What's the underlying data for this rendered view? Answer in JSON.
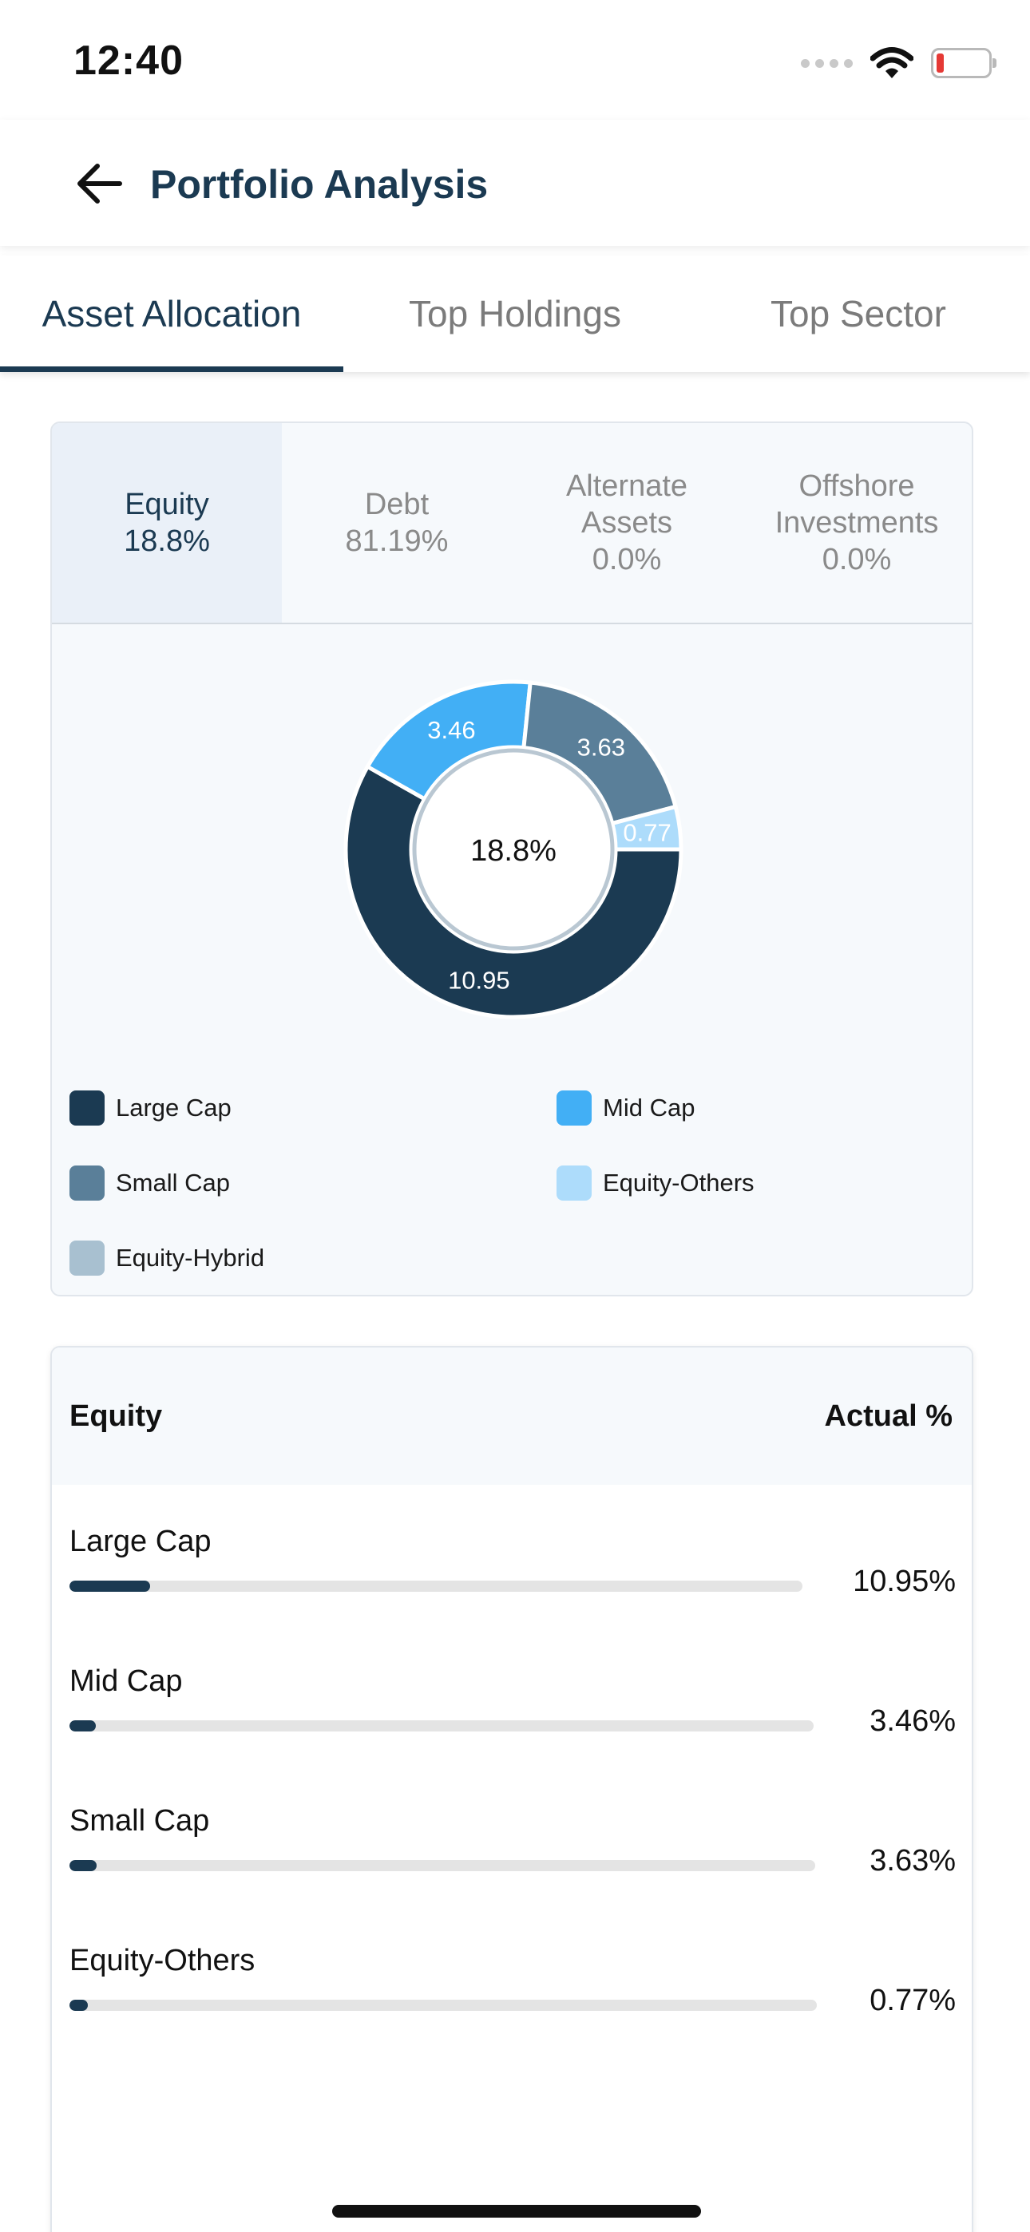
{
  "status": {
    "time": "12:40"
  },
  "header": {
    "title": "Portfolio Analysis"
  },
  "tabs": [
    {
      "label": "Asset Allocation",
      "active": true
    },
    {
      "label": "Top Holdings",
      "active": false
    },
    {
      "label": "Top Sector",
      "active": false
    }
  ],
  "categories": [
    {
      "line1": "Equity",
      "line2": "",
      "value": "18.8%",
      "active": true
    },
    {
      "line1": "Debt",
      "line2": "",
      "value": "81.19%",
      "active": false
    },
    {
      "line1": "Alternate",
      "line2": "Assets",
      "value": "0.0%",
      "active": false
    },
    {
      "line1": "Offshore",
      "line2": "Investments",
      "value": "0.0%",
      "active": false
    }
  ],
  "chart_data": {
    "type": "pie",
    "center_label": "18.8%",
    "slices": [
      {
        "label": "Large Cap",
        "value": 10.95,
        "display": "10.95",
        "color": "#1b3a52"
      },
      {
        "label": "Mid Cap",
        "value": 3.46,
        "display": "3.46",
        "color": "#42aff5"
      },
      {
        "label": "Small Cap",
        "value": 3.63,
        "display": "3.63",
        "color": "#5a7f99"
      },
      {
        "label": "Equity-Others",
        "value": 0.77,
        "display": "0.77",
        "color": "#addcfb"
      },
      {
        "label": "Equity-Hybrid",
        "value": 0,
        "display": "",
        "color": "#a8c0d0"
      }
    ],
    "legend": [
      "Large Cap",
      "Mid Cap",
      "Small Cap",
      "Equity-Others",
      "Equity-Hybrid"
    ]
  },
  "equity_table": {
    "header_left": "Equity",
    "header_right": "Actual %",
    "rows": [
      {
        "name": "Large Cap",
        "value": "10.95%",
        "fraction": 0.11
      },
      {
        "name": "Mid Cap",
        "value": "3.46%",
        "fraction": 0.035
      },
      {
        "name": "Small Cap",
        "value": "3.63%",
        "fraction": 0.036
      },
      {
        "name": "Equity-Others",
        "value": "0.77%",
        "fraction": 0.025
      }
    ]
  },
  "icons": {
    "back": "arrow-left-icon",
    "wifi": "wifi-icon",
    "battery": "battery-icon",
    "signal": "signal-icon"
  }
}
